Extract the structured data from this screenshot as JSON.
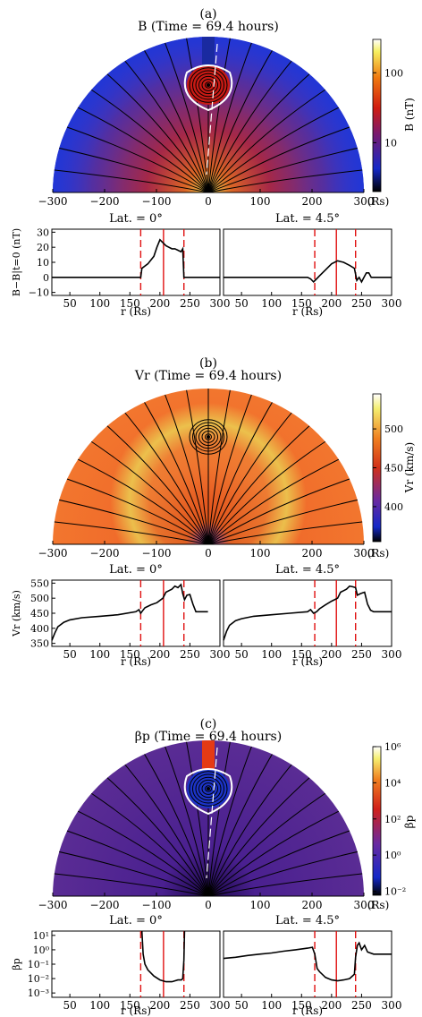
{
  "chart_data": [
    {
      "panel": "(a)",
      "title": "B    (Time = 69.4 hours)",
      "map": {
        "type": "heatmap",
        "xticks": [
          -300,
          -200,
          -100,
          0,
          100,
          200,
          300
        ],
        "xunit": "(Rs)",
        "colorbar": {
          "label": "B (nT)",
          "scale": "log",
          "range": [
            2,
            300
          ],
          "ticks": [
            {
              "v": 10,
              "t": "10"
            },
            {
              "v": 100,
              "t": "100"
            }
          ]
        }
      },
      "lines": [
        {
          "type": "line",
          "title": "Lat. = 0°",
          "xlabel": "r (Rs)",
          "ylabel": "B−B|t=0 (nT)",
          "xlim": [
            20,
            300
          ],
          "ylim": [
            -12,
            32
          ],
          "yscale": "linear",
          "xticks": [
            50,
            100,
            150,
            200,
            250,
            300
          ],
          "yticks": [
            {
              "v": -10,
              "t": "−10"
            },
            {
              "v": 0,
              "t": "0"
            },
            {
              "v": 10,
              "t": "10"
            },
            {
              "v": 20,
              "t": "20"
            },
            {
              "v": 30,
              "t": "30"
            }
          ],
          "vlines": [
            {
              "x": 168,
              "style": "dash"
            },
            {
              "x": 206,
              "style": "solid"
            },
            {
              "x": 240,
              "style": "dash"
            }
          ],
          "x": [
            20,
            160,
            166,
            168,
            170,
            180,
            190,
            195,
            200,
            205,
            210,
            215,
            220,
            225,
            230,
            235,
            238,
            240,
            242,
            260,
            300
          ],
          "y": [
            0,
            0,
            0,
            0,
            6,
            9,
            14,
            20,
            25,
            23,
            21,
            20,
            19,
            19,
            18,
            17,
            19,
            0,
            0,
            0,
            0
          ]
        },
        {
          "type": "line",
          "title": "Lat. = 4.5°",
          "xlabel": "r (Rs)",
          "ylabel": "",
          "xlim": [
            20,
            300
          ],
          "ylim": [
            -12,
            32
          ],
          "yscale": "linear",
          "xticks": [
            50,
            100,
            150,
            200,
            250,
            300
          ],
          "yticks": [],
          "vlines": [
            {
              "x": 172,
              "style": "dash"
            },
            {
              "x": 208,
              "style": "solid"
            },
            {
              "x": 240,
              "style": "dash"
            }
          ],
          "x": [
            20,
            150,
            160,
            165,
            170,
            175,
            180,
            190,
            200,
            210,
            220,
            230,
            238,
            242,
            246,
            250,
            254,
            258,
            262,
            266,
            270,
            280,
            300
          ],
          "y": [
            0,
            0,
            0,
            -1,
            -3,
            -1,
            1,
            5,
            9,
            11,
            10,
            8,
            6,
            -2,
            0,
            -3,
            0,
            3,
            3,
            0,
            0,
            0,
            0
          ]
        }
      ]
    },
    {
      "panel": "(b)",
      "title": "Vr    (Time = 69.4 hours)",
      "map": {
        "type": "heatmap",
        "xticks": [
          -300,
          -200,
          -100,
          0,
          100,
          200,
          300
        ],
        "xunit": "(Rs)",
        "colorbar": {
          "label": "Vr (km/s)",
          "scale": "linear",
          "range": [
            355,
            545
          ],
          "ticks": [
            {
              "v": 400,
              "t": "400"
            },
            {
              "v": 450,
              "t": "450"
            },
            {
              "v": 500,
              "t": "500"
            }
          ]
        }
      },
      "lines": [
        {
          "type": "line",
          "title": "Lat. = 0°",
          "xlabel": "r (Rs)",
          "ylabel": "Vr (km/s)",
          "xlim": [
            20,
            300
          ],
          "ylim": [
            340,
            560
          ],
          "yscale": "linear",
          "xticks": [
            50,
            100,
            150,
            200,
            250,
            300
          ],
          "yticks": [
            {
              "v": 350,
              "t": "350"
            },
            {
              "v": 400,
              "t": "400"
            },
            {
              "v": 450,
              "t": "450"
            },
            {
              "v": 500,
              "t": "500"
            },
            {
              "v": 550,
              "t": "550"
            }
          ],
          "vlines": [
            {
              "x": 168,
              "style": "dash"
            },
            {
              "x": 206,
              "style": "solid"
            },
            {
              "x": 240,
              "style": "dash"
            }
          ],
          "x": [
            20,
            25,
            30,
            40,
            50,
            70,
            100,
            130,
            160,
            165,
            168,
            171,
            175,
            185,
            195,
            205,
            210,
            215,
            220,
            225,
            230,
            235,
            238,
            241,
            245,
            250,
            255,
            260,
            265,
            270,
            280
          ],
          "y": [
            360,
            385,
            405,
            420,
            428,
            435,
            440,
            445,
            455,
            462,
            450,
            458,
            468,
            478,
            485,
            500,
            520,
            525,
            530,
            540,
            535,
            545,
            515,
            495,
            510,
            512,
            480,
            455,
            455,
            455,
            455
          ]
        },
        {
          "type": "line",
          "title": "Lat. = 4.5°",
          "xlabel": "r (Rs)",
          "ylabel": "",
          "xlim": [
            20,
            300
          ],
          "ylim": [
            340,
            560
          ],
          "yscale": "linear",
          "xticks": [
            50,
            100,
            150,
            200,
            250,
            300
          ],
          "yticks": [],
          "vlines": [
            {
              "x": 172,
              "style": "dash"
            },
            {
              "x": 208,
              "style": "solid"
            },
            {
              "x": 240,
              "style": "dash"
            }
          ],
          "x": [
            20,
            25,
            30,
            40,
            50,
            70,
            100,
            130,
            160,
            165,
            170,
            175,
            180,
            190,
            200,
            210,
            215,
            220,
            225,
            230,
            235,
            240,
            243,
            248,
            252,
            255,
            260,
            265,
            270,
            280,
            290,
            300
          ],
          "y": [
            360,
            390,
            410,
            425,
            432,
            440,
            445,
            450,
            455,
            462,
            450,
            455,
            465,
            478,
            490,
            500,
            520,
            525,
            530,
            540,
            538,
            535,
            510,
            515,
            518,
            520,
            480,
            460,
            455,
            455,
            455,
            455
          ]
        }
      ]
    },
    {
      "panel": "(c)",
      "title": "βp    (Time = 69.4 hours)",
      "map": {
        "type": "heatmap",
        "xticks": [
          -300,
          -200,
          -100,
          0,
          100,
          200,
          300
        ],
        "xunit": "(Rs)",
        "colorbar": {
          "label": "βp",
          "scale": "log",
          "range": [
            0.006,
            1000000
          ],
          "ticks": [
            {
              "v": 0.01,
              "t": "10⁻²"
            },
            {
              "v": 1,
              "t": "10⁰"
            },
            {
              "v": 100,
              "t": "10²"
            },
            {
              "v": 10000,
              "t": "10⁴"
            },
            {
              "v": 1000000,
              "t": "10⁶"
            }
          ]
        }
      },
      "lines": [
        {
          "type": "line",
          "title": "Lat. = 0°",
          "xlabel": "r (Rs)",
          "ylabel": "βp",
          "xlim": [
            20,
            300
          ],
          "ylim": [
            0.0005,
            20
          ],
          "yscale": "log",
          "xticks": [
            50,
            100,
            150,
            200,
            250,
            300
          ],
          "yticks": [
            {
              "v": 0.001,
              "t": "10⁻³"
            },
            {
              "v": 0.01,
              "t": "10⁻²"
            },
            {
              "v": 0.1,
              "t": "10⁻¹"
            },
            {
              "v": 1,
              "t": "10⁰"
            },
            {
              "v": 10,
              "t": "10¹"
            }
          ],
          "vlines": [
            {
              "x": 168,
              "style": "dash"
            },
            {
              "x": 206,
              "style": "solid"
            },
            {
              "x": 240,
              "style": "dash"
            }
          ],
          "x": [
            170,
            172,
            175,
            180,
            190,
            200,
            210,
            220,
            230,
            236,
            238,
            240,
            241
          ],
          "y": [
            20,
            0.5,
            0.1,
            0.04,
            0.015,
            0.008,
            0.006,
            0.006,
            0.008,
            0.008,
            0.01,
            0.2,
            20
          ]
        },
        {
          "type": "line",
          "title": "Lat. = 4.5°",
          "xlabel": "r (Rs)",
          "ylabel": "",
          "xlim": [
            20,
            300
          ],
          "ylim": [
            0.0005,
            20
          ],
          "yscale": "log",
          "xticks": [
            50,
            100,
            150,
            200,
            250,
            300
          ],
          "yticks": [],
          "vlines": [
            {
              "x": 172,
              "style": "dash"
            },
            {
              "x": 208,
              "style": "solid"
            },
            {
              "x": 240,
              "style": "dash"
            }
          ],
          "x": [
            20,
            40,
            60,
            80,
            100,
            120,
            140,
            160,
            168,
            172,
            176,
            180,
            190,
            200,
            210,
            220,
            230,
            238,
            240,
            243,
            246,
            250,
            255,
            260,
            270,
            280,
            290,
            300
          ],
          "y": [
            0.25,
            0.3,
            0.4,
            0.5,
            0.6,
            0.8,
            1,
            1.3,
            1.5,
            0.5,
            0.05,
            0.03,
            0.012,
            0.008,
            0.007,
            0.008,
            0.01,
            0.02,
            0.3,
            2,
            3,
            1,
            2,
            0.7,
            0.5,
            0.5,
            0.5,
            0.5
          ]
        }
      ]
    }
  ]
}
